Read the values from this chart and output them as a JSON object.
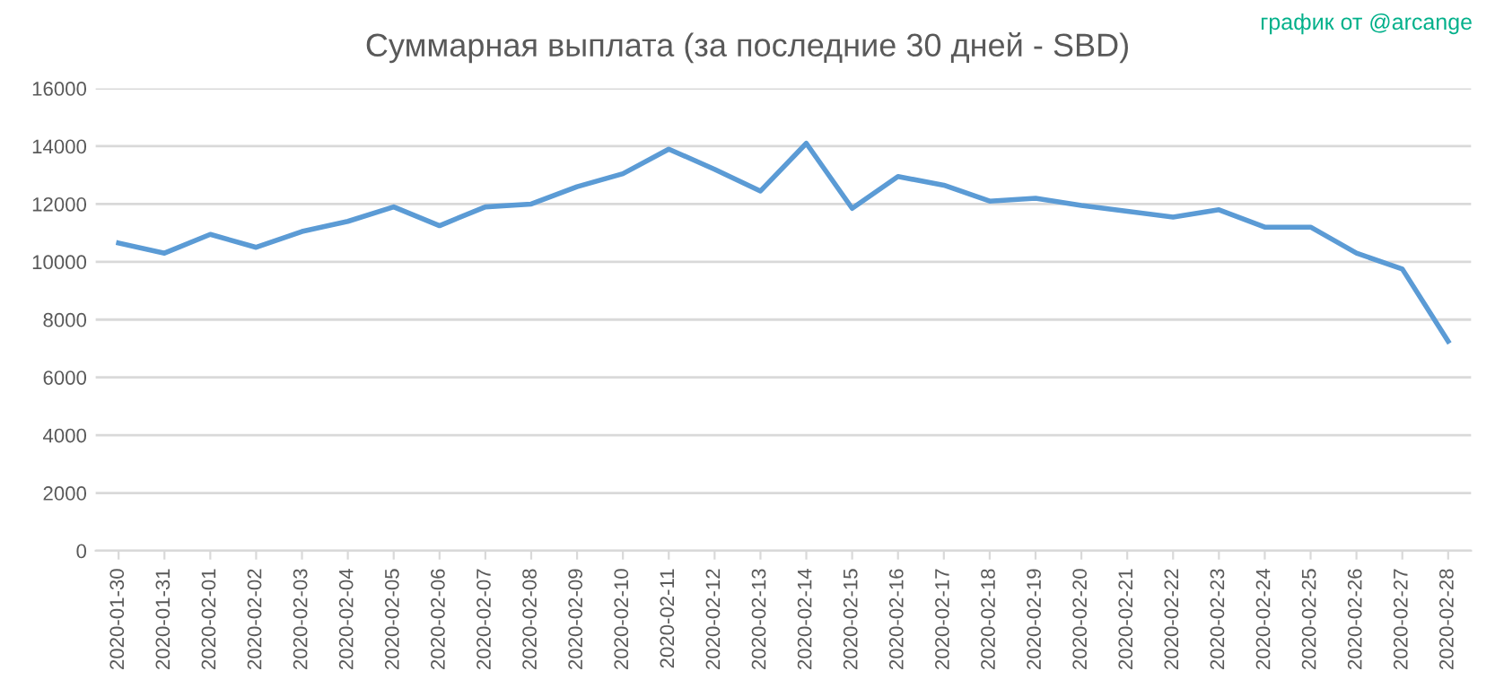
{
  "chart_data": {
    "type": "line",
    "title": "Суммарная выплата (за последние 30 дней - SBD)",
    "annotations": [
      "график от @arcange"
    ],
    "categories": [
      "2020-01-30",
      "2020-01-31",
      "2020-02-01",
      "2020-02-02",
      "2020-02-03",
      "2020-02-04",
      "2020-02-05",
      "2020-02-06",
      "2020-02-07",
      "2020-02-08",
      "2020-02-09",
      "2020-02-10",
      "2020-02-11",
      "2020-02-12",
      "2020-02-13",
      "2020-02-14",
      "2020-02-15",
      "2020-02-16",
      "2020-02-17",
      "2020-02-18",
      "2020-02-19",
      "2020-02-20",
      "2020-02-21",
      "2020-02-22",
      "2020-02-23",
      "2020-02-24",
      "2020-02-25",
      "2020-02-26",
      "2020-02-27",
      "2020-02-28"
    ],
    "series": [
      {
        "color": "#5b9bd5",
        "values": [
          10650,
          10300,
          10950,
          10500,
          11050,
          11400,
          11900,
          11250,
          11900,
          12000,
          12600,
          13050,
          13900,
          13200,
          12450,
          14100,
          11850,
          12950,
          12650,
          12100,
          12200,
          11950,
          11750,
          11550,
          11800,
          11200,
          11200,
          10300,
          9750,
          7250
        ]
      }
    ],
    "ylim": [
      0,
      16000
    ],
    "yticks": [
      0,
      2000,
      4000,
      6000,
      8000,
      10000,
      12000,
      14000,
      16000
    ],
    "grid": "y",
    "legend": false,
    "marker": "none",
    "line_style": "solid"
  }
}
